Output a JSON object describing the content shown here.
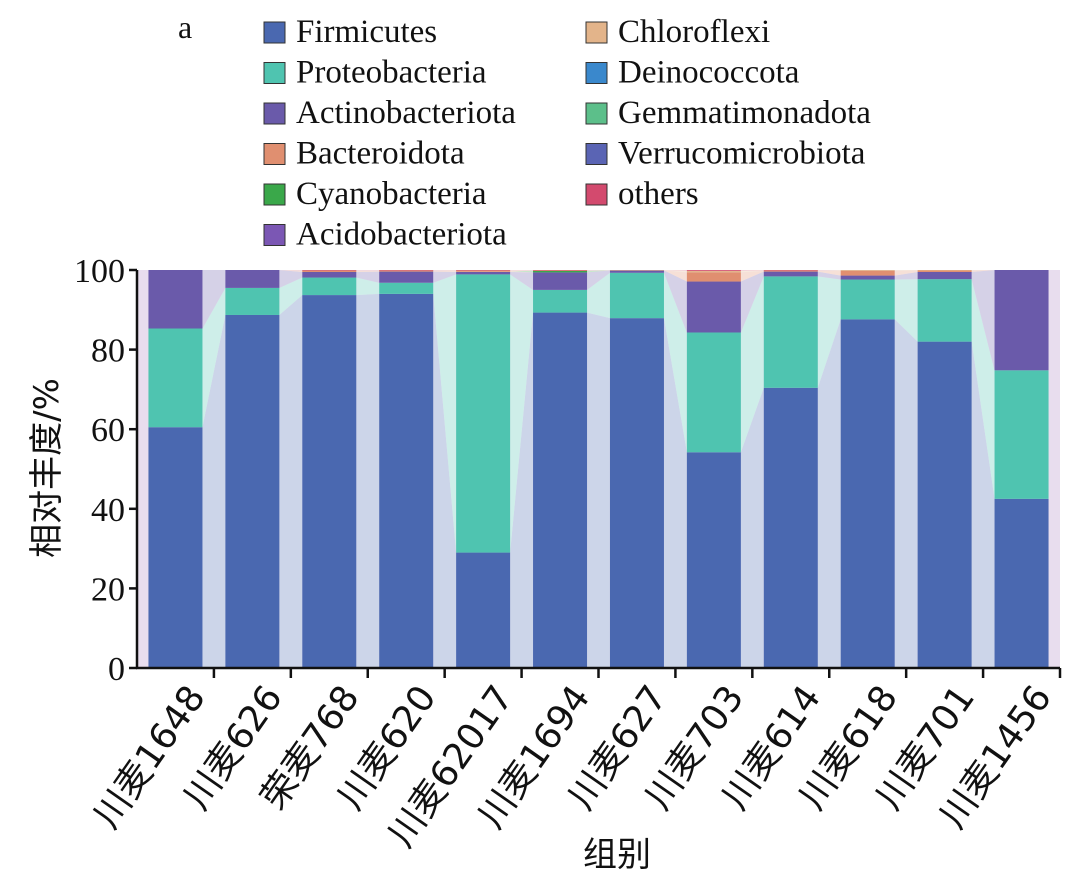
{
  "chart_data": {
    "type": "bar",
    "stacked": true,
    "panel_label": "a",
    "xlabel": "组别",
    "ylabel": "相对丰度/%",
    "ylim": [
      0,
      100
    ],
    "yticks": [
      0,
      20,
      40,
      60,
      80,
      100
    ],
    "categories": [
      "川麦1648",
      "川麦626",
      "荣麦768",
      "川麦620",
      "川麦62017",
      "川麦1694",
      "川麦627",
      "川麦703",
      "川麦614",
      "川麦618",
      "川麦701",
      "川麦1456"
    ],
    "series": [
      {
        "name": "Firmicutes",
        "color": "#4a68b0",
        "values": [
          60.5,
          88.7,
          93.7,
          94.0,
          29.0,
          89.3,
          87.9,
          54.2,
          70.4,
          87.6,
          82.0,
          42.5
        ]
      },
      {
        "name": "Proteobacteria",
        "color": "#4fc4b0",
        "values": [
          24.8,
          6.8,
          4.4,
          2.8,
          69.9,
          5.7,
          11.4,
          30.1,
          28.0,
          10.0,
          15.7,
          32.3
        ]
      },
      {
        "name": "Actinobacteriota",
        "color": "#6a5aaa",
        "values": [
          14.7,
          4.5,
          1.4,
          2.8,
          0.6,
          4.4,
          0.6,
          12.8,
          1.2,
          1.0,
          1.8,
          25.2
        ]
      },
      {
        "name": "Bacteroidota",
        "color": "#e08f70",
        "values": [
          0,
          0,
          0.3,
          0.2,
          0.2,
          0,
          0,
          2.3,
          0.2,
          1.2,
          0.4,
          0
        ]
      },
      {
        "name": "Cyanobacteria",
        "color": "#3aa84a",
        "values": [
          0,
          0,
          0,
          0,
          0,
          0.4,
          0,
          0,
          0,
          0,
          0,
          0
        ]
      },
      {
        "name": "Acidobacteriota",
        "color": "#7b57b4",
        "values": [
          0,
          0,
          0,
          0,
          0,
          0,
          0,
          0,
          0,
          0,
          0,
          0
        ]
      },
      {
        "name": "Chloroflexi",
        "color": "#e3b48a",
        "values": [
          0,
          0,
          0.1,
          0.1,
          0.2,
          0.1,
          0.1,
          0.4,
          0.1,
          0.2,
          0.1,
          0
        ]
      },
      {
        "name": "Deinococcota",
        "color": "#3a88cc",
        "values": [
          0,
          0,
          0,
          0,
          0,
          0,
          0,
          0,
          0,
          0,
          0,
          0
        ]
      },
      {
        "name": "Gemmatimonadota",
        "color": "#5cbf8a",
        "values": [
          0,
          0,
          0,
          0,
          0,
          0,
          0,
          0,
          0,
          0,
          0,
          0
        ]
      },
      {
        "name": "Verrucomicrobiota",
        "color": "#5a64b4",
        "values": [
          0,
          0,
          0,
          0,
          0,
          0,
          0,
          0,
          0,
          0,
          0,
          0
        ]
      },
      {
        "name": "others",
        "color": "#d34a6e",
        "values": [
          0,
          0,
          0.1,
          0.1,
          0.1,
          0.1,
          0,
          0.2,
          0.1,
          0,
          0,
          0
        ]
      }
    ],
    "legend": [
      "Firmicutes",
      "Proteobacteria",
      "Actinobacteriota",
      "Bacteroidota",
      "Cyanobacteria",
      "Acidobacteriota",
      "Chloroflexi",
      "Deinococcota",
      "Gemmatimonadota",
      "Verrucomicrobiota",
      "others"
    ],
    "legend_position": "top",
    "grid": false
  }
}
